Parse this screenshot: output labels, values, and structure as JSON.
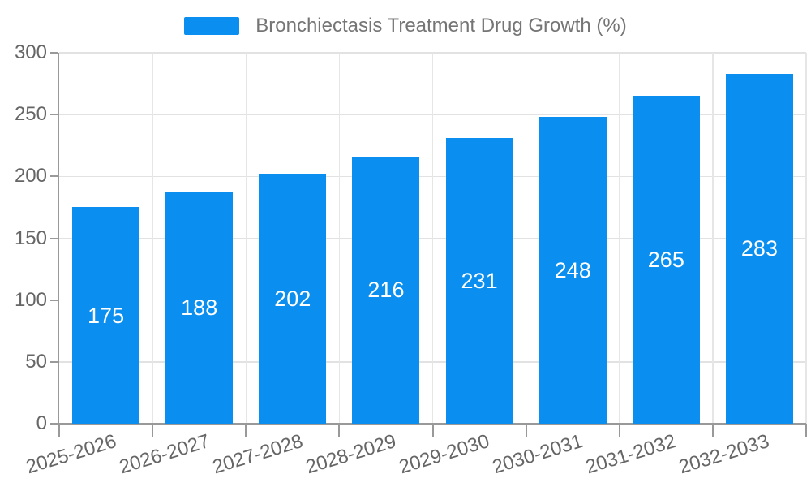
{
  "legend": {
    "label": "Bronchiectasis Treatment Drug Growth (%)"
  },
  "chart_data": {
    "type": "bar",
    "title": "Bronchiectasis Treatment Drug Growth (%)",
    "categories": [
      "2025-2026",
      "2026-2027",
      "2027-2028",
      "2028-2029",
      "2029-2030",
      "2030-2031",
      "2031-2032",
      "2032-2033"
    ],
    "values": [
      175,
      188,
      202,
      216,
      231,
      248,
      265,
      283
    ],
    "xlabel": "",
    "ylabel": "",
    "ylim": [
      0,
      300
    ],
    "yticks": [
      0,
      50,
      100,
      150,
      200,
      250,
      300
    ],
    "grid": true,
    "legend_position": "top-center",
    "colors": {
      "bar": "#0a8ff0",
      "value_label": "#ffffff",
      "axis_line": "#999999",
      "axis_text": "#666666",
      "legend_text": "#757575",
      "gridline": "#e2e2e2"
    }
  }
}
